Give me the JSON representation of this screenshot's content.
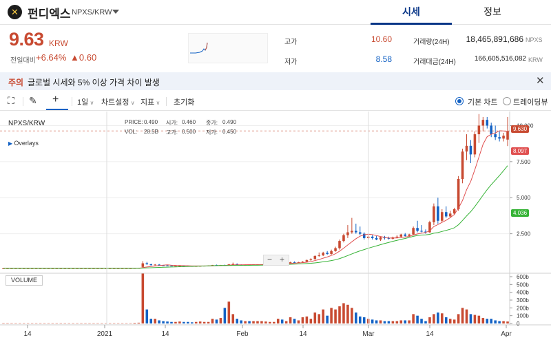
{
  "header": {
    "coin_name": "펀디엑스",
    "pair": "NPXS/KRW",
    "tabs": [
      {
        "label": "시세",
        "active": true
      },
      {
        "label": "정보",
        "active": false
      }
    ]
  },
  "summary": {
    "price": "9.63",
    "price_unit": "KRW",
    "change_label": "전일대비",
    "change_pct": "+6.64%",
    "change_amt": "▲0.60",
    "high_label": "고가",
    "high_value": "10.60",
    "low_label": "저가",
    "low_value": "8.58",
    "volume_label": "거래량(24H)",
    "volume_value": "18,465,891,686",
    "volume_unit": "NPXS",
    "amount_label": "거래대금(24H)",
    "amount_value": "166,605,516,082",
    "amount_unit": "KRW"
  },
  "notice": {
    "tag": "주의",
    "text": "글로벌 시세와 5% 이상 가격 차이 발생"
  },
  "toolbar": {
    "interval": "1일",
    "chart_settings": "차트설정",
    "indicators": "지표",
    "reset": "초기화",
    "basic_chart": "기본 차트",
    "trading_view": "트레이딩뷰"
  },
  "chart": {
    "title": "NPXS/KRW",
    "overlays": "Overlays",
    "ohlc": {
      "price_label": "PRICE:",
      "price": "0.490",
      "open_label": "시가:",
      "open": "0.460",
      "close_label": "종가:",
      "close": "0.490",
      "vol_label": "VOL:",
      "vol": "28.5B",
      "high_label": "고가:",
      "high": "0.500",
      "low_label": "저가:",
      "low": "0.450"
    },
    "volume_label": "VOLUME",
    "current_price_badge": "9.630",
    "ma1_badge": "8.097",
    "ma2_badge": "4.036",
    "y_ticks": [
      "10.000",
      "7.500",
      "5.000",
      "2.500"
    ],
    "vol_ticks": [
      "600b",
      "500b",
      "400b",
      "300b",
      "200b",
      "100b",
      "0"
    ],
    "x_ticks": [
      "14",
      "2021",
      "14",
      "Feb",
      "14",
      "Mar",
      "14",
      "Apr"
    ],
    "colors": {
      "up": "#c84a31",
      "down": "#1261c4",
      "ma_short": "#e05050",
      "ma_long": "#36b336"
    }
  },
  "chart_data": {
    "type": "candlestick",
    "ylim": [
      0,
      10.5
    ],
    "vol_ylim": [
      0,
      600
    ],
    "candles": [
      [
        0.1,
        0.1,
        0.1,
        0.1,
        5
      ],
      [
        0.1,
        0.11,
        0.09,
        0.1,
        5
      ],
      [
        0.1,
        0.1,
        0.1,
        0.1,
        4
      ],
      [
        0.1,
        0.1,
        0.1,
        0.1,
        4
      ],
      [
        0.1,
        0.1,
        0.1,
        0.1,
        4
      ],
      [
        0.1,
        0.1,
        0.1,
        0.1,
        4
      ],
      [
        0.1,
        0.1,
        0.1,
        0.1,
        4
      ],
      [
        0.1,
        0.1,
        0.1,
        0.1,
        4
      ],
      [
        0.1,
        0.1,
        0.1,
        0.1,
        4
      ],
      [
        0.1,
        0.1,
        0.1,
        0.1,
        4
      ],
      [
        0.1,
        0.1,
        0.1,
        0.1,
        4
      ],
      [
        0.1,
        0.1,
        0.1,
        0.1,
        4
      ],
      [
        0.1,
        0.1,
        0.1,
        0.1,
        4
      ],
      [
        0.1,
        0.1,
        0.1,
        0.1,
        4
      ],
      [
        0.1,
        0.1,
        0.1,
        0.1,
        4
      ],
      [
        0.1,
        0.1,
        0.1,
        0.1,
        4
      ],
      [
        0.1,
        0.1,
        0.1,
        0.1,
        4
      ],
      [
        0.1,
        0.1,
        0.1,
        0.1,
        4
      ],
      [
        0.1,
        0.1,
        0.1,
        0.1,
        4
      ],
      [
        0.1,
        0.1,
        0.1,
        0.1,
        4
      ],
      [
        0.1,
        0.1,
        0.1,
        0.1,
        4
      ],
      [
        0.1,
        0.1,
        0.1,
        0.1,
        4
      ],
      [
        0.1,
        0.1,
        0.1,
        0.1,
        4
      ],
      [
        0.1,
        0.1,
        0.1,
        0.1,
        4
      ],
      [
        0.1,
        0.1,
        0.1,
        0.1,
        4
      ],
      [
        0.1,
        0.1,
        0.1,
        0.1,
        4
      ],
      [
        0.1,
        0.1,
        0.1,
        0.1,
        4
      ],
      [
        0.1,
        0.1,
        0.1,
        0.1,
        4
      ],
      [
        0.1,
        0.1,
        0.1,
        0.1,
        4
      ],
      [
        0.1,
        0.1,
        0.1,
        0.1,
        4
      ],
      [
        0.1,
        0.1,
        0.1,
        0.1,
        4
      ],
      [
        0.1,
        0.1,
        0.1,
        0.1,
        4
      ],
      [
        0.1,
        0.11,
        0.1,
        0.11,
        8
      ],
      [
        0.11,
        0.13,
        0.11,
        0.12,
        10
      ],
      [
        0.2,
        0.6,
        0.15,
        0.45,
        640
      ],
      [
        0.45,
        0.55,
        0.35,
        0.38,
        180
      ],
      [
        0.38,
        0.42,
        0.3,
        0.32,
        60
      ],
      [
        0.32,
        0.4,
        0.3,
        0.36,
        60
      ],
      [
        0.36,
        0.4,
        0.3,
        0.31,
        40
      ],
      [
        0.31,
        0.34,
        0.28,
        0.3,
        30
      ],
      [
        0.3,
        0.33,
        0.28,
        0.29,
        25
      ],
      [
        0.29,
        0.3,
        0.26,
        0.27,
        20
      ],
      [
        0.27,
        0.3,
        0.26,
        0.28,
        20
      ],
      [
        0.28,
        0.3,
        0.26,
        0.28,
        25
      ],
      [
        0.28,
        0.3,
        0.26,
        0.27,
        20
      ],
      [
        0.27,
        0.29,
        0.25,
        0.26,
        20
      ],
      [
        0.26,
        0.28,
        0.24,
        0.25,
        15
      ],
      [
        0.25,
        0.27,
        0.24,
        0.26,
        20
      ],
      [
        0.26,
        0.28,
        0.25,
        0.27,
        25
      ],
      [
        0.27,
        0.29,
        0.26,
        0.28,
        20
      ],
      [
        0.28,
        0.3,
        0.27,
        0.29,
        20
      ],
      [
        0.29,
        0.34,
        0.28,
        0.33,
        60
      ],
      [
        0.33,
        0.36,
        0.3,
        0.31,
        50
      ],
      [
        0.31,
        0.34,
        0.3,
        0.33,
        70
      ],
      [
        0.33,
        0.36,
        0.31,
        0.32,
        200
      ],
      [
        0.32,
        0.4,
        0.31,
        0.38,
        280
      ],
      [
        0.38,
        0.5,
        0.36,
        0.4,
        120
      ],
      [
        0.4,
        0.44,
        0.34,
        0.35,
        60
      ],
      [
        0.35,
        0.38,
        0.33,
        0.34,
        40
      ],
      [
        0.34,
        0.37,
        0.33,
        0.36,
        30
      ],
      [
        0.36,
        0.38,
        0.34,
        0.35,
        30
      ],
      [
        0.35,
        0.37,
        0.34,
        0.36,
        30
      ],
      [
        0.36,
        0.38,
        0.35,
        0.37,
        30
      ],
      [
        0.37,
        0.39,
        0.35,
        0.38,
        30
      ],
      [
        0.38,
        0.41,
        0.37,
        0.4,
        25
      ],
      [
        0.4,
        0.42,
        0.38,
        0.41,
        20
      ],
      [
        0.41,
        0.43,
        0.4,
        0.42,
        20
      ],
      [
        0.42,
        0.48,
        0.4,
        0.46,
        60
      ],
      [
        0.46,
        0.5,
        0.42,
        0.44,
        50
      ],
      [
        0.44,
        0.47,
        0.43,
        0.45,
        30
      ],
      [
        0.45,
        0.56,
        0.44,
        0.52,
        80
      ],
      [
        0.52,
        0.58,
        0.48,
        0.5,
        60
      ],
      [
        0.5,
        0.55,
        0.48,
        0.53,
        40
      ],
      [
        0.53,
        0.6,
        0.5,
        0.56,
        80
      ],
      [
        0.56,
        0.7,
        0.52,
        0.68,
        90
      ],
      [
        0.68,
        0.8,
        0.62,
        0.74,
        60
      ],
      [
        0.74,
        1.0,
        0.7,
        0.96,
        140
      ],
      [
        0.96,
        1.2,
        0.9,
        1.0,
        120
      ],
      [
        1.0,
        1.25,
        0.95,
        1.18,
        180
      ],
      [
        1.18,
        1.3,
        1.05,
        1.1,
        100
      ],
      [
        1.1,
        1.4,
        1.05,
        1.3,
        200
      ],
      [
        1.3,
        1.6,
        1.25,
        1.5,
        180
      ],
      [
        1.5,
        2.1,
        1.4,
        2.0,
        220
      ],
      [
        2.0,
        2.5,
        1.9,
        2.4,
        260
      ],
      [
        2.4,
        3.1,
        2.2,
        2.6,
        240
      ],
      [
        2.6,
        3.6,
        2.5,
        2.7,
        200
      ],
      [
        2.7,
        3.2,
        2.5,
        2.6,
        140
      ],
      [
        2.6,
        3.0,
        2.4,
        2.5,
        90
      ],
      [
        2.5,
        2.6,
        2.1,
        2.2,
        80
      ],
      [
        2.2,
        2.4,
        2.1,
        2.3,
        60
      ],
      [
        2.3,
        2.4,
        2.1,
        2.2,
        50
      ],
      [
        2.2,
        2.35,
        2.05,
        2.1,
        40
      ],
      [
        2.1,
        2.3,
        2.0,
        2.25,
        40
      ],
      [
        2.25,
        2.35,
        2.1,
        2.2,
        30
      ],
      [
        2.2,
        2.3,
        2.1,
        2.15,
        30
      ],
      [
        2.15,
        2.3,
        2.1,
        2.25,
        30
      ],
      [
        2.25,
        2.4,
        2.2,
        2.3,
        30
      ],
      [
        2.3,
        2.5,
        2.2,
        2.45,
        40
      ],
      [
        2.45,
        2.55,
        2.3,
        2.35,
        40
      ],
      [
        2.35,
        2.5,
        2.3,
        2.45,
        40
      ],
      [
        2.45,
        3.0,
        2.4,
        2.9,
        120
      ],
      [
        2.9,
        3.4,
        2.6,
        2.7,
        100
      ],
      [
        2.7,
        3.1,
        2.6,
        2.65,
        60
      ],
      [
        2.65,
        2.8,
        2.5,
        2.6,
        30
      ],
      [
        2.6,
        3.4,
        2.55,
        3.3,
        80
      ],
      [
        3.3,
        4.6,
        3.1,
        4.4,
        120
      ],
      [
        4.4,
        5.0,
        3.2,
        3.4,
        140
      ],
      [
        3.4,
        4.2,
        3.3,
        4.0,
        130
      ],
      [
        4.0,
        4.4,
        3.6,
        3.7,
        80
      ],
      [
        3.7,
        4.1,
        3.6,
        3.9,
        60
      ],
      [
        3.9,
        4.3,
        3.8,
        4.2,
        50
      ],
      [
        4.2,
        6.5,
        4.1,
        6.3,
        120
      ],
      [
        6.3,
        8.4,
        6.0,
        8.2,
        200
      ],
      [
        8.2,
        9.4,
        7.6,
        8.6,
        180
      ],
      [
        8.6,
        9.0,
        7.4,
        8.0,
        120
      ],
      [
        8.0,
        9.6,
        7.8,
        9.4,
        110
      ],
      [
        9.4,
        10.8,
        8.8,
        10.0,
        100
      ],
      [
        10.0,
        10.6,
        9.6,
        10.4,
        70
      ],
      [
        10.4,
        10.6,
        9.8,
        10.0,
        60
      ],
      [
        10.0,
        10.2,
        9.2,
        9.4,
        60
      ],
      [
        9.4,
        10.0,
        9.0,
        9.2,
        40
      ],
      [
        9.2,
        9.6,
        8.9,
        9.1,
        30
      ],
      [
        9.1,
        9.5,
        8.9,
        9.3,
        30
      ],
      [
        9.03,
        10.6,
        8.58,
        9.63,
        25
      ]
    ]
  }
}
